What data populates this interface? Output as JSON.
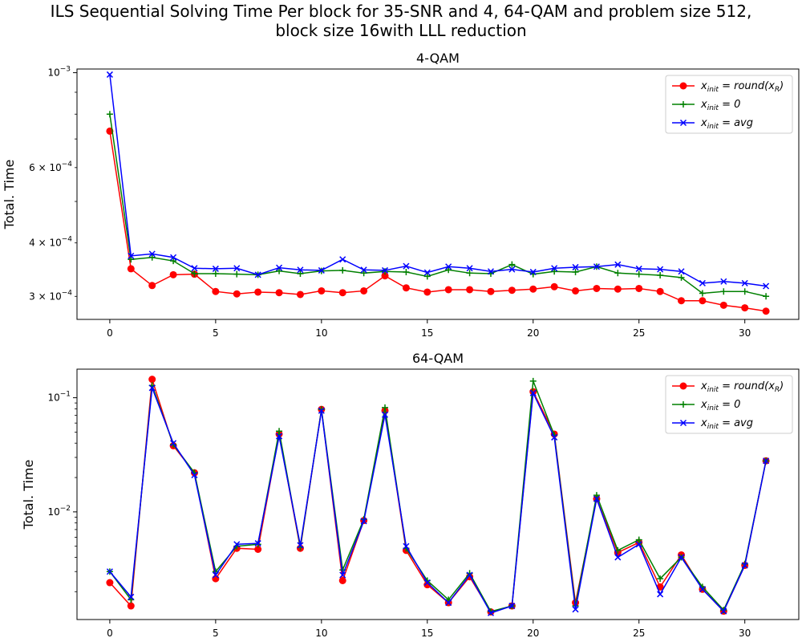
{
  "suptitle": [
    "ILS Sequential Solving Time Per block for 35-SNR and 4, 64-QAM and problem size 512,",
    "block size 16with LLL reduction"
  ],
  "colors": {
    "round": "#ff0000",
    "zero": "#008000",
    "avg": "#0000ff"
  },
  "legend": [
    {
      "key": "round",
      "pre": "x",
      "sub": "init",
      "post": " = round(x",
      "sub2": "R",
      "tail": ")",
      "marker": "circle"
    },
    {
      "key": "zero",
      "pre": "x",
      "sub": "init",
      "post": " = 0",
      "sub2": "",
      "tail": "",
      "marker": "plus"
    },
    {
      "key": "avg",
      "pre": "x",
      "sub": "init",
      "post": " = avg",
      "sub2": "",
      "tail": "",
      "marker": "x"
    }
  ],
  "chart_data": [
    {
      "type": "line",
      "title": "4-QAM",
      "xlabel": "",
      "ylabel": "Total. Time",
      "yscale": "log",
      "xlim": [
        -1.55,
        32.55
      ],
      "ylim": [
        0.000265,
        0.00102
      ],
      "legend_loc": "upper right",
      "x_ticks": [
        0,
        5,
        10,
        15,
        20,
        25,
        30
      ],
      "y_major_ticks": [
        {
          "value": 0.001,
          "base": "10",
          "exp": "−3"
        }
      ],
      "y_minor_ticks": [
        {
          "value": 0.0003,
          "coef": "3 × 10",
          "exp": "−4"
        },
        {
          "value": 0.0004,
          "coef": "4 × 10",
          "exp": "−4"
        },
        {
          "value": 0.0006,
          "coef": "6 × 10",
          "exp": "−4"
        }
      ],
      "y_minor_unlabeled": [
        0.0005,
        0.0007,
        0.0008,
        0.0009
      ],
      "x": [
        0,
        1,
        2,
        3,
        4,
        5,
        6,
        7,
        8,
        9,
        10,
        11,
        12,
        13,
        14,
        15,
        16,
        17,
        18,
        19,
        20,
        21,
        22,
        23,
        24,
        25,
        26,
        27,
        28,
        29,
        30,
        31
      ],
      "series": [
        {
          "key": "round",
          "values": [
            0.00073,
            0.000348,
            0.000318,
            0.000337,
            0.000338,
            0.000308,
            0.000304,
            0.000307,
            0.000306,
            0.000303,
            0.000309,
            0.000306,
            0.000309,
            0.000335,
            0.000314,
            0.000307,
            0.000311,
            0.000311,
            0.000308,
            0.00031,
            0.000312,
            0.000316,
            0.000309,
            0.000313,
            0.000312,
            0.000313,
            0.000308,
            0.000293,
            0.000293,
            0.000286,
            0.000282,
            0.000277
          ]
        },
        {
          "key": "zero",
          "values": [
            0.0008,
            0.000366,
            0.00037,
            0.000363,
            0.000339,
            0.000339,
            0.000338,
            0.000337,
            0.000344,
            0.000339,
            0.000344,
            0.000345,
            0.00034,
            0.000343,
            0.000342,
            0.000334,
            0.000346,
            0.00034,
            0.000339,
            0.000356,
            0.000338,
            0.000343,
            0.000342,
            0.000352,
            0.00034,
            0.000338,
            0.000336,
            0.000332,
            0.000305,
            0.000308,
            0.000308,
            0.0003
          ]
        },
        {
          "key": "avg",
          "values": [
            0.00099,
            0.000373,
            0.000377,
            0.00037,
            0.000349,
            0.000348,
            0.000349,
            0.000337,
            0.00035,
            0.000346,
            0.000345,
            0.000366,
            0.000346,
            0.000345,
            0.000353,
            0.000341,
            0.000352,
            0.000349,
            0.000343,
            0.000347,
            0.000342,
            0.000349,
            0.000351,
            0.000352,
            0.000356,
            0.000348,
            0.000347,
            0.000343,
            0.000322,
            0.000325,
            0.000322,
            0.000317
          ]
        }
      ]
    },
    {
      "type": "line",
      "title": "64-QAM",
      "xlabel": "",
      "ylabel": "Total. Time",
      "yscale": "log",
      "xlim": [
        -1.55,
        32.55
      ],
      "ylim": [
        0.00114,
        0.178
      ],
      "legend_loc": "upper right",
      "x_ticks": [
        0,
        5,
        10,
        15,
        20,
        25,
        30
      ],
      "y_major_ticks": [
        {
          "value": 0.01,
          "base": "10",
          "exp": "−2"
        },
        {
          "value": 0.1,
          "base": "10",
          "exp": "−1"
        }
      ],
      "y_minor_ticks": [],
      "y_minor_unlabeled": [
        0.002,
        0.003,
        0.004,
        0.005,
        0.006,
        0.007,
        0.008,
        0.009,
        0.02,
        0.03,
        0.04,
        0.05,
        0.06,
        0.07,
        0.08,
        0.09
      ],
      "x": [
        0,
        1,
        2,
        3,
        4,
        5,
        6,
        7,
        8,
        9,
        10,
        11,
        12,
        13,
        14,
        15,
        16,
        17,
        18,
        19,
        20,
        21,
        22,
        23,
        24,
        25,
        26,
        27,
        28,
        29,
        30,
        31
      ],
      "series": [
        {
          "key": "round",
          "values": [
            0.0024,
            0.0015,
            0.145,
            0.038,
            0.022,
            0.0026,
            0.0048,
            0.0047,
            0.048,
            0.0048,
            0.079,
            0.0025,
            0.0084,
            0.077,
            0.0046,
            0.0023,
            0.0016,
            0.0027,
            0.00133,
            0.0015,
            0.113,
            0.048,
            0.0016,
            0.013,
            0.0044,
            0.0054,
            0.0022,
            0.0042,
            0.0021,
            0.00135,
            0.0034,
            0.028
          ]
        },
        {
          "key": "zero",
          "values": [
            0.003,
            0.0017,
            0.128,
            0.039,
            0.022,
            0.003,
            0.005,
            0.0052,
            0.051,
            0.0049,
            0.079,
            0.0031,
            0.0086,
            0.082,
            0.0048,
            0.0025,
            0.0017,
            0.0029,
            0.00134,
            0.0015,
            0.14,
            0.047,
            0.0015,
            0.014,
            0.0046,
            0.0057,
            0.0026,
            0.004,
            0.0022,
            0.00138,
            0.0035,
            0.028
          ]
        },
        {
          "key": "avg",
          "values": [
            0.003,
            0.0018,
            0.122,
            0.04,
            0.021,
            0.0028,
            0.0052,
            0.0053,
            0.046,
            0.0051,
            0.077,
            0.0028,
            0.0083,
            0.071,
            0.005,
            0.0024,
            0.0016,
            0.0028,
            0.0013,
            0.0015,
            0.11,
            0.045,
            0.0014,
            0.013,
            0.004,
            0.0052,
            0.0019,
            0.004,
            0.0021,
            0.00135,
            0.0034,
            0.028
          ]
        }
      ]
    }
  ]
}
